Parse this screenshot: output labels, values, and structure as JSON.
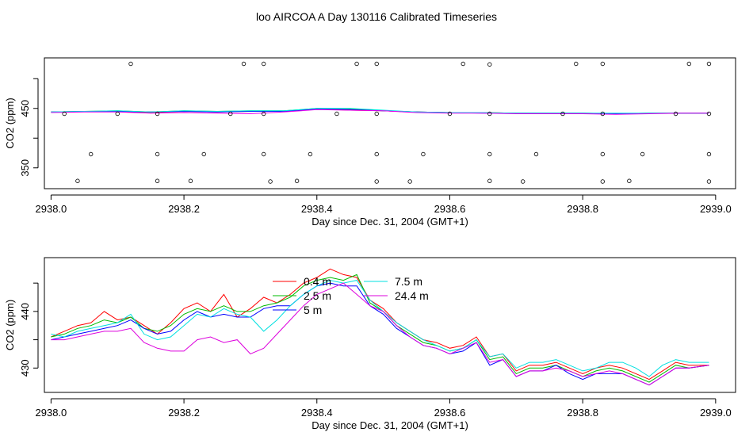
{
  "figure": {
    "title": "loo AIRCOA A  Day 130116  Calibrated Timeseries"
  },
  "chart_data": [
    {
      "type": "scatter",
      "xlabel": "Day since Dec. 31, 2004 (GMT+1)",
      "ylabel": "CO2 (ppm)",
      "xlim": [
        2937.99,
        2939.03
      ],
      "ylim": [
        315,
        535
      ],
      "xticks": [
        2938.0,
        2938.2,
        2938.4,
        2938.6,
        2938.8,
        2939.0
      ],
      "xtick_labels": [
        "2938.0",
        "2938.2",
        "2938.4",
        "2938.6",
        "2938.8",
        "2939.0"
      ],
      "yticks": [
        350,
        450
      ],
      "ytick_labels": [
        "350",
        "450"
      ],
      "ytick_minor": [
        400,
        500
      ],
      "series": [
        {
          "color": "#ff0000",
          "x": [
            2938.0,
            2938.05,
            2938.1,
            2938.15,
            2938.2,
            2938.25,
            2938.3,
            2938.35,
            2938.4,
            2938.45,
            2938.5,
            2938.55,
            2938.6,
            2938.65,
            2938.7,
            2938.75,
            2938.8,
            2938.85,
            2938.9,
            2938.95,
            2938.99
          ],
          "y": [
            444,
            445,
            445,
            443,
            445,
            444,
            445,
            445,
            449,
            447,
            446,
            444,
            443,
            443,
            442,
            442,
            442,
            441,
            442,
            442,
            442
          ]
        },
        {
          "color": "#00cc00",
          "x": [
            2938.0,
            2938.05,
            2938.1,
            2938.15,
            2938.2,
            2938.25,
            2938.3,
            2938.35,
            2938.4,
            2938.45,
            2938.5,
            2938.55,
            2938.6,
            2938.65,
            2938.7,
            2938.75,
            2938.8,
            2938.85,
            2938.9,
            2938.95,
            2938.99
          ],
          "y": [
            444,
            445,
            446,
            444,
            446,
            445,
            446,
            446,
            450,
            449,
            446,
            444,
            443,
            443,
            442,
            442,
            442,
            441,
            442,
            442,
            442
          ]
        },
        {
          "color": "#0000ff",
          "x": [
            2938.0,
            2938.05,
            2938.1,
            2938.15,
            2938.2,
            2938.25,
            2938.3,
            2938.35,
            2938.4,
            2938.45,
            2938.5,
            2938.55,
            2938.6,
            2938.65,
            2938.7,
            2938.75,
            2938.8,
            2938.85,
            2938.9,
            2938.95,
            2938.99
          ],
          "y": [
            444,
            445,
            445,
            444,
            445,
            444,
            445,
            445,
            449,
            448,
            446,
            444,
            443,
            442,
            442,
            442,
            442,
            441,
            442,
            442,
            442
          ]
        },
        {
          "color": "#00e5e5",
          "x": [
            2938.0,
            2938.05,
            2938.1,
            2938.15,
            2938.2,
            2938.25,
            2938.3,
            2938.35,
            2938.4,
            2938.45,
            2938.5,
            2938.55,
            2938.6,
            2938.65,
            2938.7,
            2938.75,
            2938.8,
            2938.85,
            2938.9,
            2938.95,
            2938.99
          ],
          "y": [
            444,
            445,
            446,
            444,
            446,
            445,
            446,
            446,
            450,
            450,
            447,
            444,
            443,
            443,
            442,
            442,
            442,
            442,
            442,
            442,
            442
          ]
        },
        {
          "color": "#ee00ee",
          "x": [
            2938.0,
            2938.05,
            2938.1,
            2938.15,
            2938.2,
            2938.25,
            2938.3,
            2938.35,
            2938.4,
            2938.45,
            2938.5,
            2938.55,
            2938.6,
            2938.65,
            2938.7,
            2938.75,
            2938.8,
            2938.85,
            2938.9,
            2938.95,
            2938.99
          ],
          "y": [
            443,
            444,
            444,
            442,
            443,
            442,
            441,
            444,
            448,
            447,
            446,
            443,
            442,
            442,
            441,
            441,
            441,
            440,
            441,
            442,
            442
          ]
        }
      ],
      "points": {
        "x": [
          2938.12,
          2938.29,
          2938.32,
          2938.46,
          2938.49,
          2938.62,
          2938.66,
          2938.79,
          2938.83,
          2938.96,
          2938.99,
          2938.02,
          2938.1,
          2938.16,
          2938.27,
          2938.32,
          2938.43,
          2938.49,
          2938.6,
          2938.66,
          2938.77,
          2938.83,
          2938.94,
          2938.99,
          2938.06,
          2938.16,
          2938.23,
          2938.32,
          2938.39,
          2938.49,
          2938.56,
          2938.66,
          2938.73,
          2938.83,
          2938.89,
          2938.99,
          2938.04,
          2938.16,
          2938.21,
          2938.33,
          2938.37,
          2938.49,
          2938.54,
          2938.66,
          2938.71,
          2938.83,
          2938.87,
          2938.99
        ],
        "y": [
          525,
          525,
          525,
          525,
          525,
          525,
          524,
          525,
          525,
          525,
          525,
          441,
          441,
          441,
          441,
          441,
          441,
          441,
          441,
          441,
          441,
          441,
          441,
          441,
          373,
          373,
          373,
          373,
          373,
          373,
          373,
          373,
          373,
          373,
          373,
          373,
          328,
          328,
          328,
          327,
          328,
          327,
          327,
          328,
          327,
          327,
          328,
          327
        ]
      }
    },
    {
      "type": "line",
      "xlabel": "Day since Dec. 31, 2004 (GMT+1)",
      "ylabel": "CO2 (ppm)",
      "xlim": [
        2937.99,
        2939.03
      ],
      "ylim": [
        425.7,
        449.5
      ],
      "xticks": [
        2938.0,
        2938.2,
        2938.4,
        2938.6,
        2938.8,
        2939.0
      ],
      "xtick_labels": [
        "2938.0",
        "2938.2",
        "2938.4",
        "2938.6",
        "2938.8",
        "2939.0"
      ],
      "yticks": [
        430,
        440
      ],
      "ytick_labels": [
        "430",
        "440"
      ],
      "ytick_minor": [
        435,
        445
      ],
      "legend": {
        "placement": "top-center",
        "columns": 2
      },
      "x": [
        2938.0,
        2938.02,
        2938.04,
        2938.06,
        2938.08,
        2938.1,
        2938.12,
        2938.14,
        2938.16,
        2938.18,
        2938.2,
        2938.22,
        2938.24,
        2938.26,
        2938.28,
        2938.3,
        2938.32,
        2938.34,
        2938.36,
        2938.38,
        2938.4,
        2938.42,
        2938.44,
        2938.46,
        2938.48,
        2938.5,
        2938.52,
        2938.54,
        2938.56,
        2938.58,
        2938.6,
        2938.62,
        2938.64,
        2938.66,
        2938.68,
        2938.7,
        2938.72,
        2938.74,
        2938.76,
        2938.78,
        2938.8,
        2938.82,
        2938.84,
        2938.86,
        2938.88,
        2938.9,
        2938.92,
        2938.94,
        2938.96,
        2938.99
      ],
      "series": [
        {
          "name": "0.4 m",
          "color": "#ff0000",
          "values": [
            435.5,
            436.5,
            437.5,
            438.0,
            440.0,
            438.5,
            439.0,
            437.5,
            436.0,
            438.0,
            440.5,
            441.5,
            440.0,
            443.0,
            439.0,
            440.5,
            442.5,
            441.5,
            443.0,
            445.0,
            446.0,
            447.5,
            446.5,
            446.0,
            442.0,
            440.5,
            438.0,
            436.5,
            435.0,
            434.5,
            433.5,
            434.0,
            435.5,
            432.0,
            432.5,
            429.5,
            430.5,
            430.5,
            431.0,
            430.0,
            429.0,
            430.0,
            430.5,
            430.0,
            429.0,
            428.0,
            429.5,
            431.0,
            430.5,
            430.5
          ]
        },
        {
          "name": "2.5 m",
          "color": "#00bb00",
          "values": [
            435.5,
            436.0,
            437.0,
            437.5,
            438.5,
            438.0,
            439.0,
            437.0,
            436.5,
            437.5,
            439.5,
            440.5,
            440.0,
            441.0,
            440.0,
            440.0,
            441.0,
            441.5,
            442.5,
            444.5,
            445.5,
            446.0,
            445.5,
            446.5,
            441.5,
            440.0,
            437.5,
            436.0,
            434.5,
            434.0,
            433.0,
            433.5,
            435.0,
            431.5,
            432.0,
            429.0,
            430.0,
            430.0,
            430.5,
            429.5,
            428.5,
            429.5,
            430.0,
            429.5,
            428.5,
            427.5,
            429.0,
            430.5,
            430.0,
            430.5
          ]
        },
        {
          "name": "5 m",
          "color": "#0000ff",
          "values": [
            435.0,
            435.5,
            436.0,
            436.5,
            437.0,
            437.5,
            438.5,
            437.0,
            436.0,
            436.5,
            438.5,
            440.0,
            439.0,
            439.5,
            439.0,
            439.0,
            440.5,
            441.0,
            441.0,
            443.0,
            444.5,
            445.0,
            444.5,
            444.5,
            441.0,
            439.5,
            437.0,
            435.5,
            434.0,
            433.5,
            432.5,
            433.0,
            434.5,
            430.5,
            431.5,
            428.5,
            429.5,
            429.5,
            430.5,
            429.0,
            428.0,
            429.0,
            429.0,
            429.0,
            428.0,
            427.0,
            428.5,
            430.0,
            430.0,
            430.5
          ]
        },
        {
          "name": "7.5 m",
          "color": "#00e0e0",
          "values": [
            436.0,
            435.5,
            436.5,
            437.0,
            437.5,
            438.0,
            439.5,
            436.0,
            435.0,
            435.5,
            437.5,
            439.5,
            439.0,
            440.5,
            439.5,
            439.0,
            436.5,
            438.5,
            441.0,
            443.0,
            444.5,
            445.5,
            445.0,
            445.5,
            442.0,
            440.0,
            438.0,
            436.5,
            435.0,
            434.0,
            433.0,
            433.5,
            435.0,
            432.0,
            432.5,
            430.0,
            431.0,
            431.0,
            431.5,
            430.5,
            429.5,
            430.0,
            431.0,
            431.0,
            430.0,
            428.5,
            430.5,
            431.5,
            431.0,
            431.0
          ]
        },
        {
          "name": "24.4 m",
          "color": "#dd00dd",
          "values": [
            435.0,
            435.0,
            435.5,
            436.0,
            436.5,
            436.5,
            437.0,
            434.5,
            433.5,
            433.0,
            433.0,
            435.0,
            435.5,
            434.5,
            435.0,
            432.5,
            433.5,
            436.0,
            438.5,
            441.0,
            443.0,
            444.0,
            445.0,
            443.0,
            441.0,
            440.0,
            437.5,
            435.5,
            434.0,
            433.5,
            432.5,
            433.5,
            434.5,
            431.0,
            431.5,
            428.5,
            429.5,
            429.5,
            430.0,
            429.5,
            428.5,
            429.0,
            429.5,
            429.0,
            428.0,
            427.0,
            428.5,
            430.0,
            430.0,
            430.5
          ]
        }
      ]
    }
  ]
}
